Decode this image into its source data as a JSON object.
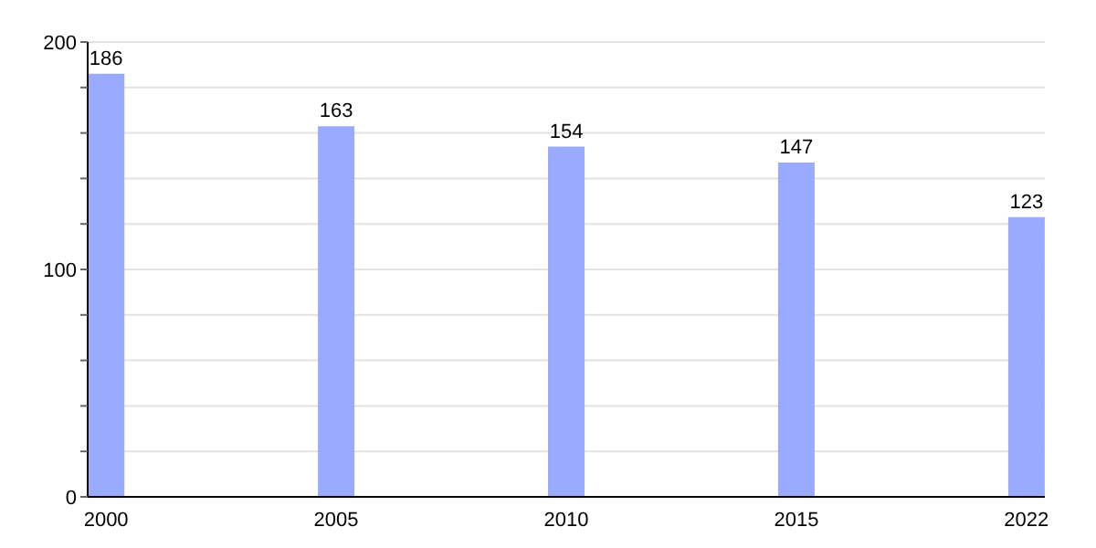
{
  "chart_data": {
    "type": "bar",
    "categories": [
      "2000",
      "2005",
      "2010",
      "2015",
      "2022"
    ],
    "values": [
      186,
      163,
      154,
      147,
      123
    ],
    "color": "#99aaff",
    "data_labels": true,
    "ylim": [
      0,
      200
    ],
    "yticks": [
      0,
      {
        "value": 20,
        "label": null
      },
      {
        "value": 40,
        "label": null
      },
      {
        "value": 60,
        "label": null
      },
      {
        "value": 80,
        "label": null
      },
      100,
      {
        "value": 120,
        "label": null
      },
      {
        "value": 140,
        "label": null
      },
      {
        "value": 160,
        "label": null
      },
      {
        "value": 180,
        "label": null
      },
      200
    ],
    "grid": "y"
  }
}
